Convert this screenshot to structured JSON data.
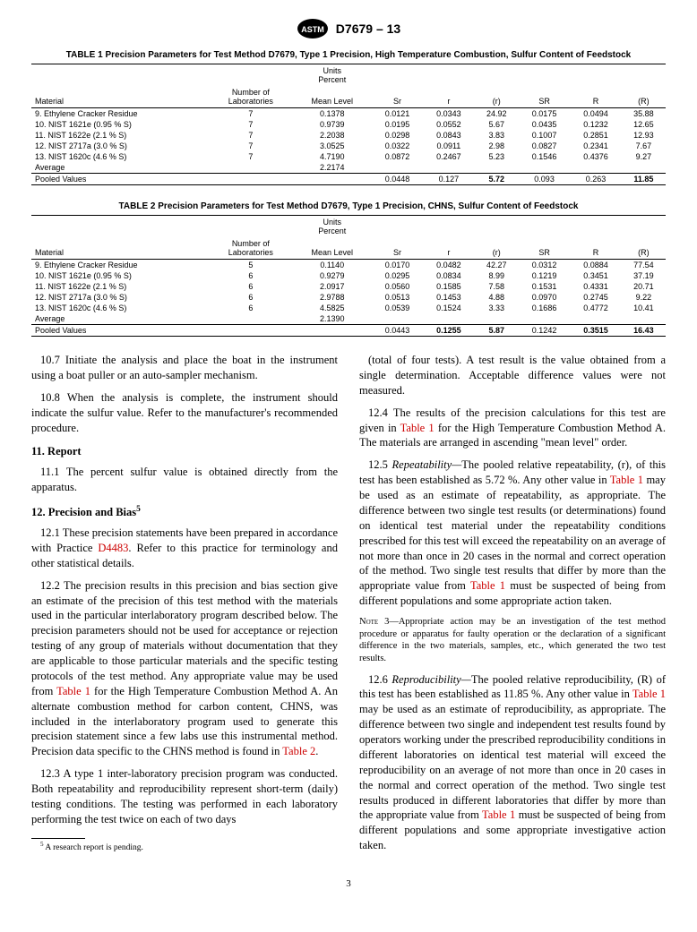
{
  "header": {
    "doc_id": "D7679 – 13"
  },
  "table1": {
    "title": "TABLE 1 Precision Parameters for Test Method D7679, Type 1 Precision, High Temperature Combustion, Sulfur Content of Feedstock",
    "units_label": "Units\nPercent",
    "cols": [
      "Material",
      "Number of\nLaboratories",
      "Mean Level",
      "Sr",
      "r",
      "(r)",
      "SR",
      "R",
      "(R)"
    ],
    "rows": [
      [
        "9. Ethylene Cracker Residue",
        "7",
        "0.1378",
        "0.0121",
        "0.0343",
        "24.92",
        "0.0175",
        "0.0494",
        "35.88"
      ],
      [
        "10. NIST 1621e (0.95 % S)",
        "7",
        "0.9739",
        "0.0195",
        "0.0552",
        "5.67",
        "0.0435",
        "0.1232",
        "12.65"
      ],
      [
        "11. NIST 1622e (2.1 % S)",
        "7",
        "2.2038",
        "0.0298",
        "0.0843",
        "3.83",
        "0.1007",
        "0.2851",
        "12.93"
      ],
      [
        "12. NIST 2717a (3.0 % S)",
        "7",
        "3.0525",
        "0.0322",
        "0.0911",
        "2.98",
        "0.0827",
        "0.2341",
        "7.67"
      ],
      [
        "13. NIST 1620c (4.6 % S)",
        "7",
        "4.7190",
        "0.0872",
        "0.2467",
        "5.23",
        "0.1546",
        "0.4376",
        "9.27"
      ],
      [
        "Average",
        "",
        "2.2174",
        "",
        "",
        "",
        "",
        "",
        ""
      ]
    ],
    "pooled": [
      "Pooled Values",
      "",
      "",
      "0.0448",
      "0.127",
      "5.72",
      "0.093",
      "0.263",
      "11.85"
    ]
  },
  "table2": {
    "title": "TABLE 2 Precision Parameters for Test Method D7679, Type 1 Precision, CHNS, Sulfur Content of Feedstock",
    "units_label": "Units\nPercent",
    "cols": [
      "Material",
      "Number of\nLaboratories",
      "Mean Level",
      "Sr",
      "r",
      "(r)",
      "SR",
      "R",
      "(R)"
    ],
    "rows": [
      [
        "9. Ethylene Cracker Residue",
        "5",
        "0.1140",
        "0.0170",
        "0.0482",
        "42.27",
        "0.0312",
        "0.0884",
        "77.54"
      ],
      [
        "10. NIST 1621e (0.95 % S)",
        "6",
        "0.9279",
        "0.0295",
        "0.0834",
        "8.99",
        "0.1219",
        "0.3451",
        "37.19"
      ],
      [
        "11. NIST 1622e (2.1 % S)",
        "6",
        "2.0917",
        "0.0560",
        "0.1585",
        "7.58",
        "0.1531",
        "0.4331",
        "20.71"
      ],
      [
        "12. NIST 2717a (3.0 % S)",
        "6",
        "2.9788",
        "0.0513",
        "0.1453",
        "4.88",
        "0.0970",
        "0.2745",
        "9.22"
      ],
      [
        "13. NIST 1620c (4.6 % S)",
        "6",
        "4.5825",
        "0.0539",
        "0.1524",
        "3.33",
        "0.1686",
        "0.4772",
        "10.41"
      ],
      [
        "Average",
        "",
        "2.1390",
        "",
        "",
        "",
        "",
        "",
        ""
      ]
    ],
    "pooled": [
      "Pooled Values",
      "",
      "",
      "0.0443",
      "0.1255",
      "5.87",
      "0.1242",
      "0.3515",
      "16.43"
    ]
  },
  "body": {
    "p107": "10.7 Initiate the analysis and place the boat in the instrument using a boat puller or an auto-sampler mechanism.",
    "p108": "10.8 When the analysis is complete, the instrument should indicate the sulfur value. Refer to the manufacturer's recommended procedure.",
    "h11": "11. Report",
    "p111": "11.1 The percent sulfur value is obtained directly from the apparatus.",
    "h12": "12. Precision and Bias",
    "sup5": "5",
    "p121a": "12.1 These precision statements have been prepared in accordance with Practice ",
    "d4483": "D4483",
    "p121b": ". Refer to this practice for terminology and other statistical details.",
    "p122a": "12.2 The precision results in this precision and bias section give an estimate of the precision of this test method with the materials used in the particular interlaboratory program described below. The precision parameters should not be used for acceptance or rejection testing of any group of materials without documentation that they are applicable to those particular materials and the specific testing protocols of the test method. Any appropriate value may be used from ",
    "tbl1ref": "Table 1",
    "p122b": " for the High Temperature Combustion Method A. An alternate combustion method for carbon content, CHNS, was included in the interlaboratory program used to generate this precision statement since a few labs use this instrumental method. Precision data specific to the CHNS method is found in ",
    "tbl2ref": "Table 2",
    "p122c": ".",
    "p123": "12.3 A type 1 inter-laboratory precision program was conducted. Both repeatability and reproducibility represent short-term (daily) testing conditions. The testing was performed in each laboratory performing the test twice on each of two days",
    "p123cont": "(total of four tests). A test result is the value obtained from a single determination. Acceptable difference values were not measured.",
    "p124a": "12.4 The results of the precision calculations for this test are given in ",
    "p124b": " for the High Temperature Combustion Method A. The materials are arranged in ascending \"mean level\" order.",
    "p125a": "12.5 ",
    "repeat": "Repeatability—",
    "p125b": "The pooled relative repeatability, (r), of this test has been established as 5.72 %. Any other value in ",
    "p125c": " may be used as an estimate of repeatability, as appropriate. The difference between two single test results (or determinations) found on identical test material under the repeatability conditions prescribed for this test will exceed the repeatability on an average of not more than once in 20 cases in the normal and correct operation of the method. Two single test results that differ by more than the appropriate value from ",
    "p125d": " must be suspected of being from different populations and some appropriate action taken.",
    "note3label": "Note 3—",
    "note3": "Appropriate action may be an investigation of the test method procedure or apparatus for faulty operation or the declaration of a significant difference in the two materials, samples, etc., which generated the two test results.",
    "p126a": "12.6 ",
    "reprod": "Reproducibility—",
    "p126b": "The pooled relative reproducibility, (R) of this test has been established as 11.85 %. Any other value in ",
    "p126c": " may be used as an estimate of reproducibility, as appropriate. The difference between two single and independent test results found by operators working under the prescribed reproducibility conditions in different laboratories on identical test material will exceed the reproducibility on an average of not more than once in 20 cases in the normal and correct operation of the method. Two single test results produced in different laboratories that differ by more than the appropriate value from ",
    "p126d": " must be suspected of being from different populations and some appropriate investigative action taken.",
    "footnote5": " A research report is pending.",
    "pagenum": "3"
  }
}
